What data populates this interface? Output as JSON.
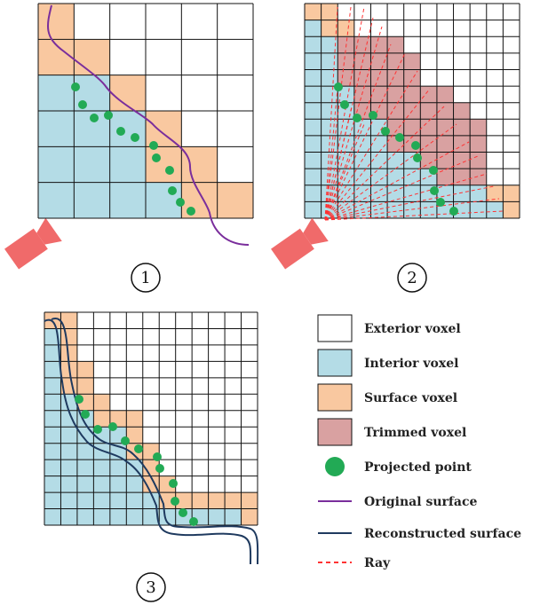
{
  "panels": [
    {
      "id": "panel-1",
      "label": "1"
    },
    {
      "id": "panel-2",
      "label": "2"
    },
    {
      "id": "panel-3",
      "label": "3"
    }
  ],
  "legend": {
    "items": [
      {
        "key": "exterior",
        "label": "Exterior voxel",
        "color": "#ffffff"
      },
      {
        "key": "interior",
        "label": "Interior voxel",
        "color": "#b4dce6"
      },
      {
        "key": "surface",
        "label": "Surface voxel",
        "color": "#f9c8a0"
      },
      {
        "key": "trimmed",
        "label": "Trimmed voxel",
        "color": "#d9a1a1"
      },
      {
        "key": "projected",
        "label": "Projected point",
        "color": "#22aa55"
      },
      {
        "key": "original",
        "label": "Original surface",
        "color": "#7a2e9c"
      },
      {
        "key": "reconstructed",
        "label": "Reconstructed surface",
        "color": "#1f3a5f"
      },
      {
        "key": "ray",
        "label": "Ray",
        "color": "#ff3333"
      }
    ]
  },
  "colors": {
    "grid_line": "#111111",
    "camera": "#f06a6a"
  }
}
